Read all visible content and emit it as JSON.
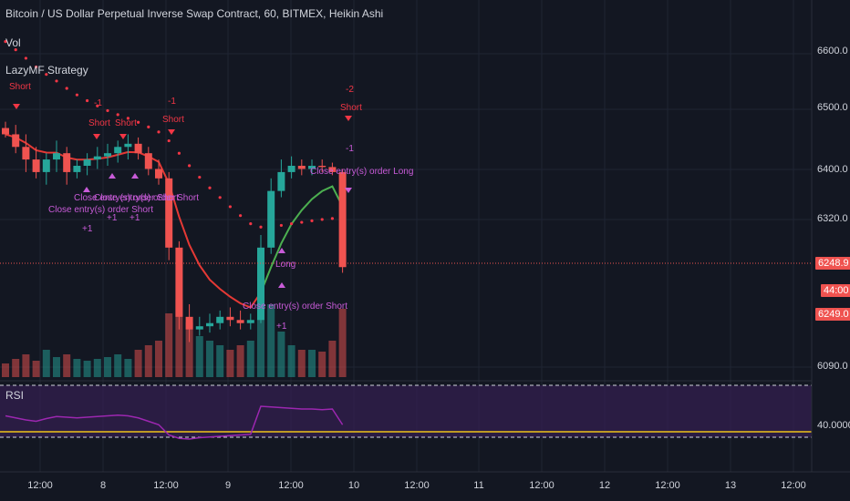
{
  "legend": {
    "title": "Bitcoin / US Dollar Perpetual Inverse Swap Contract, 60, BITMEX, Heikin Ashi",
    "vol": "Vol",
    "strategy": "LazyMF Strategy",
    "rsi": "RSI"
  },
  "price_axis": {
    "labels": [
      "6600.0",
      "6500.0",
      "6400.0",
      "6320.0",
      "6090.0"
    ],
    "rsi_label": "40.0000"
  },
  "tags": {
    "last_price": "6248.9",
    "countdown": "44:00",
    "close_price": "6249.0"
  },
  "time_axis": {
    "labels": [
      "12:00",
      "8",
      "12:00",
      "9",
      "12:00",
      "10",
      "12:00",
      "11",
      "12:00",
      "12",
      "12:00",
      "13",
      "12:00"
    ]
  },
  "annotations": {
    "short": "Short",
    "close_short": "Close entry(s) order Short",
    "close_long": "Close entry(s) order Long",
    "long": "Long",
    "minus1": "-1",
    "minus2": "-2",
    "plus1": "+1"
  },
  "colors": {
    "background": "#131722",
    "grid": "#1f2433",
    "up": "#26a69a",
    "down": "#ef5350",
    "short_marker": "#f23645",
    "close_marker": "#c85bd8",
    "rsi_line": "#9c27b0",
    "rsi_band": "#3a1f5a",
    "ema_red": "#e53935",
    "ema_green": "#4caf50",
    "last_price_line": "#ef5350",
    "rsi_level": "#f0c419"
  },
  "chart_data": {
    "type": "candlestick",
    "chart_style": "Heikin Ashi",
    "interval": "60",
    "exchange": "BITMEX",
    "candles_ohlc": [
      [
        6470,
        6480,
        6455,
        6460
      ],
      [
        6460,
        6475,
        6430,
        6440
      ],
      [
        6440,
        6460,
        6400,
        6420
      ],
      [
        6420,
        6440,
        6390,
        6400
      ],
      [
        6400,
        6430,
        6380,
        6420
      ],
      [
        6420,
        6450,
        6400,
        6430
      ],
      [
        6430,
        6440,
        6380,
        6400
      ],
      [
        6400,
        6420,
        6390,
        6410
      ],
      [
        6410,
        6430,
        6395,
        6420
      ],
      [
        6420,
        6440,
        6405,
        6425
      ],
      [
        6425,
        6445,
        6410,
        6430
      ],
      [
        6430,
        6450,
        6415,
        6440
      ],
      [
        6440,
        6460,
        6420,
        6445
      ],
      [
        6445,
        6455,
        6420,
        6430
      ],
      [
        6430,
        6440,
        6395,
        6405
      ],
      [
        6405,
        6420,
        6380,
        6390
      ],
      [
        6390,
        6400,
        6260,
        6280
      ],
      [
        6280,
        6290,
        6150,
        6170
      ],
      [
        6170,
        6190,
        6130,
        6150
      ],
      [
        6150,
        6170,
        6140,
        6155
      ],
      [
        6155,
        6175,
        6145,
        6160
      ],
      [
        6160,
        6180,
        6150,
        6170
      ],
      [
        6170,
        6185,
        6155,
        6165
      ],
      [
        6165,
        6180,
        6150,
        6160
      ],
      [
        6160,
        6175,
        6150,
        6165
      ],
      [
        6165,
        6300,
        6160,
        6280
      ],
      [
        6280,
        6390,
        6270,
        6370
      ],
      [
        6370,
        6420,
        6360,
        6400
      ],
      [
        6400,
        6425,
        6390,
        6410
      ],
      [
        6410,
        6420,
        6395,
        6405
      ],
      [
        6405,
        6420,
        6395,
        6410
      ],
      [
        6410,
        6420,
        6400,
        6408
      ],
      [
        6408,
        6415,
        6395,
        6400
      ],
      [
        6400,
        6405,
        6240,
        6249
      ]
    ],
    "volume_levels": [
      0.15,
      0.2,
      0.25,
      0.18,
      0.3,
      0.22,
      0.25,
      0.2,
      0.18,
      0.2,
      0.22,
      0.25,
      0.2,
      0.3,
      0.35,
      0.4,
      0.7,
      0.85,
      0.6,
      0.45,
      0.4,
      0.35,
      0.3,
      0.35,
      0.4,
      0.9,
      0.8,
      0.5,
      0.35,
      0.3,
      0.3,
      0.28,
      0.4,
      0.75
    ],
    "rsi_values": [
      58,
      55,
      52,
      50,
      54,
      57,
      56,
      55,
      56,
      57,
      58,
      59,
      58,
      55,
      50,
      45,
      30,
      25,
      24,
      26,
      27,
      28,
      29,
      30,
      31,
      72,
      71,
      70,
      69,
      68,
      68,
      67,
      68,
      45
    ],
    "rsi_level": 40,
    "ylim": [
      6080,
      6630
    ]
  }
}
